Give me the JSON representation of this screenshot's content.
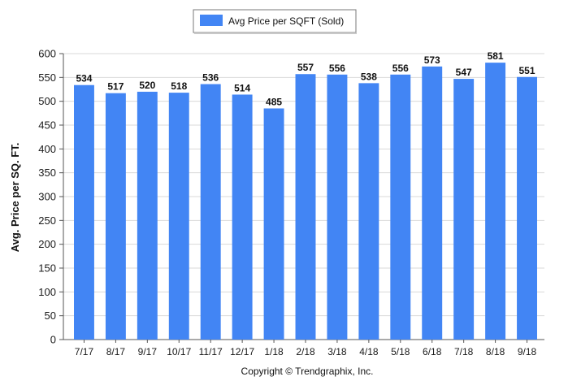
{
  "chart_data": {
    "type": "bar",
    "categories": [
      "7/17",
      "8/17",
      "9/17",
      "10/17",
      "11/17",
      "12/17",
      "1/18",
      "2/18",
      "3/18",
      "4/18",
      "5/18",
      "6/18",
      "7/18",
      "8/18",
      "9/18"
    ],
    "series": [
      {
        "name": "Avg Price per SQFT (Sold)",
        "values": [
          534,
          517,
          520,
          518,
          536,
          514,
          485,
          557,
          556,
          538,
          556,
          573,
          547,
          581,
          551
        ],
        "color": "#4285f4"
      }
    ],
    "ylabel": "Avg. Price per SQ. FT.",
    "xlabel": "",
    "ylim": [
      0,
      600
    ],
    "yticks": [
      0,
      50,
      100,
      150,
      200,
      250,
      300,
      350,
      400,
      450,
      500,
      550,
      600
    ],
    "grid": true,
    "legend_position": "top-center",
    "data_labels": true
  },
  "footer": {
    "copyright": "Copyright © Trendgraphix, Inc."
  }
}
